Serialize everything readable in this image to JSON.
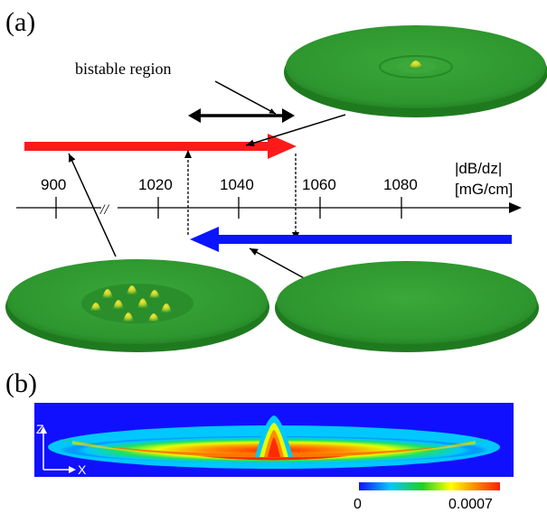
{
  "panel_a": {
    "label": "(a)",
    "bistable_label": "bistable region",
    "axis": {
      "unit_line1": "|dB/dz|",
      "unit_line2": "[mG/cm]",
      "ticks": [
        "900",
        "1020",
        "1040",
        "1060",
        "1080"
      ],
      "break_symbol": "//"
    },
    "colors": {
      "forward_arrow": "#ff1a1a",
      "backward_arrow": "#0a14ff",
      "disk": "#2c9a2c"
    }
  },
  "panel_b": {
    "label": "(b)",
    "axis_z": "z",
    "axis_x": "x",
    "colorbar": {
      "min": "0",
      "max": "0.0007",
      "colors": [
        "#1010ff",
        "#00c8ff",
        "#1ed21e",
        "#ffff00",
        "#ff8c00",
        "#ff1e00"
      ]
    }
  }
}
